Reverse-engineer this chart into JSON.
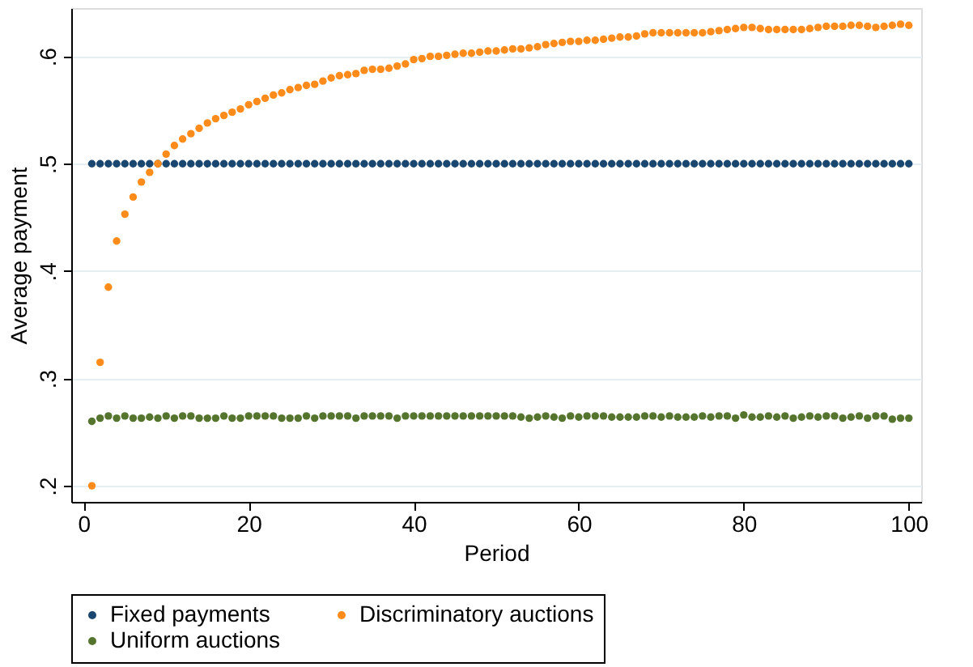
{
  "chart_data": {
    "type": "scatter",
    "xlabel": "Period",
    "ylabel": "Average payment",
    "x": [
      1,
      2,
      3,
      4,
      5,
      6,
      7,
      8,
      9,
      10,
      11,
      12,
      13,
      14,
      15,
      16,
      17,
      18,
      19,
      20,
      21,
      22,
      23,
      24,
      25,
      26,
      27,
      28,
      29,
      30,
      31,
      32,
      33,
      34,
      35,
      36,
      37,
      38,
      39,
      40,
      41,
      42,
      43,
      44,
      45,
      46,
      47,
      48,
      49,
      50,
      51,
      52,
      53,
      54,
      55,
      56,
      57,
      58,
      59,
      60,
      61,
      62,
      63,
      64,
      65,
      66,
      67,
      68,
      69,
      70,
      71,
      72,
      73,
      74,
      75,
      76,
      77,
      78,
      79,
      80,
      81,
      82,
      83,
      84,
      85,
      86,
      87,
      88,
      89,
      90,
      91,
      92,
      93,
      94,
      95,
      96,
      97,
      98,
      99,
      100
    ],
    "series": [
      {
        "name": "Fixed payments",
        "color": "#1a476f",
        "values": [
          0.5,
          0.5,
          0.5,
          0.5,
          0.5,
          0.5,
          0.5,
          0.5,
          0.5,
          0.5,
          0.5,
          0.5,
          0.5,
          0.5,
          0.5,
          0.5,
          0.5,
          0.5,
          0.5,
          0.5,
          0.5,
          0.5,
          0.5,
          0.5,
          0.5,
          0.5,
          0.5,
          0.5,
          0.5,
          0.5,
          0.5,
          0.5,
          0.5,
          0.5,
          0.5,
          0.5,
          0.5,
          0.5,
          0.5,
          0.5,
          0.5,
          0.5,
          0.5,
          0.5,
          0.5,
          0.5,
          0.5,
          0.5,
          0.5,
          0.5,
          0.5,
          0.5,
          0.5,
          0.5,
          0.5,
          0.5,
          0.5,
          0.5,
          0.5,
          0.5,
          0.5,
          0.5,
          0.5,
          0.5,
          0.5,
          0.5,
          0.5,
          0.5,
          0.5,
          0.5,
          0.5,
          0.5,
          0.5,
          0.5,
          0.5,
          0.5,
          0.5,
          0.5,
          0.5,
          0.5,
          0.5,
          0.5,
          0.5,
          0.5,
          0.5,
          0.5,
          0.5,
          0.5,
          0.5,
          0.5,
          0.5,
          0.5,
          0.5,
          0.5,
          0.5,
          0.5,
          0.5,
          0.5,
          0.5,
          0.5
        ]
      },
      {
        "name": "Discriminatory auctions",
        "color": "#ff8c1a",
        "values": [
          0.2,
          0.315,
          0.385,
          0.428,
          0.453,
          0.469,
          0.483,
          0.492,
          0.5,
          0.509,
          0.517,
          0.523,
          0.528,
          0.533,
          0.538,
          0.542,
          0.545,
          0.548,
          0.551,
          0.555,
          0.558,
          0.561,
          0.564,
          0.566,
          0.569,
          0.571,
          0.573,
          0.574,
          0.577,
          0.58,
          0.582,
          0.583,
          0.584,
          0.587,
          0.588,
          0.588,
          0.589,
          0.591,
          0.593,
          0.597,
          0.598,
          0.6,
          0.6,
          0.601,
          0.602,
          0.603,
          0.603,
          0.604,
          0.605,
          0.605,
          0.606,
          0.607,
          0.607,
          0.608,
          0.609,
          0.611,
          0.612,
          0.613,
          0.614,
          0.614,
          0.615,
          0.615,
          0.616,
          0.617,
          0.618,
          0.618,
          0.619,
          0.621,
          0.622,
          0.622,
          0.622,
          0.622,
          0.622,
          0.622,
          0.622,
          0.623,
          0.624,
          0.625,
          0.626,
          0.627,
          0.627,
          0.626,
          0.625,
          0.625,
          0.625,
          0.625,
          0.625,
          0.626,
          0.627,
          0.628,
          0.628,
          0.628,
          0.629,
          0.629,
          0.628,
          0.627,
          0.628,
          0.629,
          0.63,
          0.629
        ]
      },
      {
        "name": "Uniform auctions",
        "color": "#55752f",
        "values": [
          0.26,
          0.263,
          0.265,
          0.263,
          0.265,
          0.263,
          0.263,
          0.264,
          0.263,
          0.265,
          0.263,
          0.265,
          0.265,
          0.263,
          0.263,
          0.263,
          0.265,
          0.263,
          0.263,
          0.265,
          0.265,
          0.265,
          0.265,
          0.263,
          0.263,
          0.263,
          0.265,
          0.263,
          0.265,
          0.265,
          0.265,
          0.265,
          0.263,
          0.265,
          0.265,
          0.265,
          0.265,
          0.263,
          0.265,
          0.265,
          0.265,
          0.265,
          0.265,
          0.265,
          0.265,
          0.265,
          0.265,
          0.265,
          0.265,
          0.265,
          0.265,
          0.265,
          0.264,
          0.263,
          0.264,
          0.265,
          0.264,
          0.263,
          0.265,
          0.264,
          0.265,
          0.265,
          0.265,
          0.264,
          0.264,
          0.264,
          0.264,
          0.265,
          0.265,
          0.264,
          0.265,
          0.264,
          0.264,
          0.264,
          0.265,
          0.264,
          0.265,
          0.265,
          0.263,
          0.266,
          0.264,
          0.264,
          0.265,
          0.264,
          0.265,
          0.263,
          0.264,
          0.265,
          0.264,
          0.265,
          0.265,
          0.263,
          0.264,
          0.265,
          0.263,
          0.265,
          0.265,
          0.262,
          0.263,
          0.263
        ]
      }
    ],
    "xlim": [
      -1.5,
      101.5
    ],
    "xticks": [
      0,
      20,
      40,
      60,
      80,
      100
    ],
    "ylim": [
      0.185,
      0.645
    ],
    "yticks": [
      {
        "value": 0.2,
        "label": ".2"
      },
      {
        "value": 0.3,
        "label": ".3"
      },
      {
        "value": 0.4,
        "label": ".4"
      },
      {
        "value": 0.5,
        "label": ".5"
      },
      {
        "value": 0.6,
        "label": ".6"
      }
    ],
    "grid": "y",
    "legend": "bottom",
    "marker": "circle"
  }
}
